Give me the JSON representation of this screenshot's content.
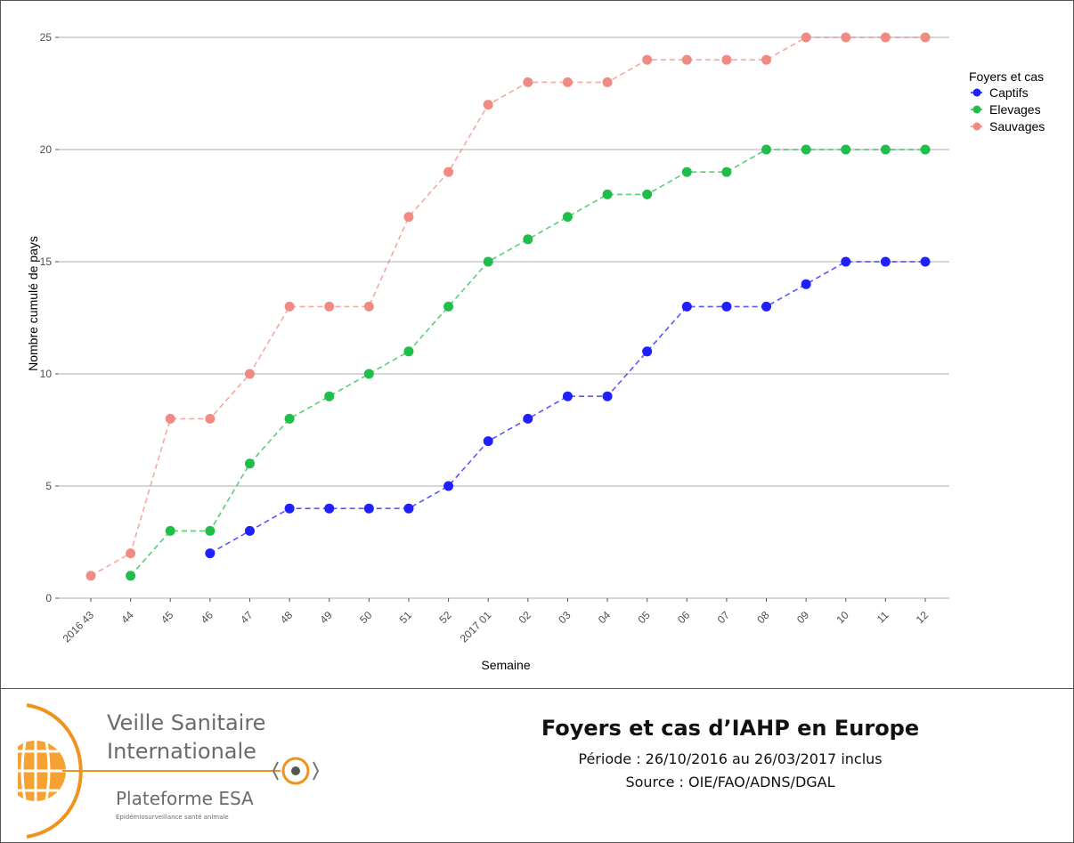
{
  "chart_data": {
    "type": "line",
    "x": [
      "2016 43",
      "44",
      "45",
      "46",
      "47",
      "48",
      "49",
      "50",
      "51",
      "52",
      "2017 01",
      "02",
      "03",
      "04",
      "05",
      "06",
      "07",
      "08",
      "09",
      "10",
      "11",
      "12"
    ],
    "xlabel": "Semaine",
    "ylabel": "Nombre cumulé de pays",
    "ylim": [
      0,
      25
    ],
    "yticks": [
      0,
      5,
      10,
      15,
      20,
      25
    ],
    "grid": "horizontal",
    "legend_position": "right",
    "legend_title": "Foyers et cas",
    "series": [
      {
        "name": "Captifs",
        "color": "#1f1fff",
        "values": [
          null,
          null,
          null,
          2,
          3,
          4,
          4,
          4,
          4,
          5,
          7,
          8,
          9,
          9,
          11,
          13,
          13,
          13,
          14,
          15,
          15,
          15
        ]
      },
      {
        "name": "Elevages",
        "color": "#1fbe4a",
        "values": [
          null,
          1,
          3,
          3,
          6,
          8,
          9,
          10,
          11,
          13,
          15,
          16,
          17,
          18,
          18,
          19,
          19,
          20,
          20,
          20,
          20,
          20
        ]
      },
      {
        "name": "Sauvages",
        "color": "#f08b84",
        "values": [
          1,
          2,
          8,
          8,
          10,
          13,
          13,
          13,
          17,
          19,
          22,
          23,
          23,
          23,
          24,
          24,
          24,
          24,
          25,
          25,
          25,
          25
        ]
      }
    ]
  },
  "caption": {
    "title": "Foyers et cas d’IAHP en Europe",
    "period": "Période : 26/10/2016 au 26/03/2017 inclus",
    "source": "Source : OIE/FAO/ADNS/DGAL"
  },
  "logo": {
    "line1": "Veille Sanitaire",
    "line2": "Internationale",
    "line3": "Plateforme ESA",
    "line4": "Epidémiosurveillance santé animale",
    "accent_color": "#f0931e"
  }
}
